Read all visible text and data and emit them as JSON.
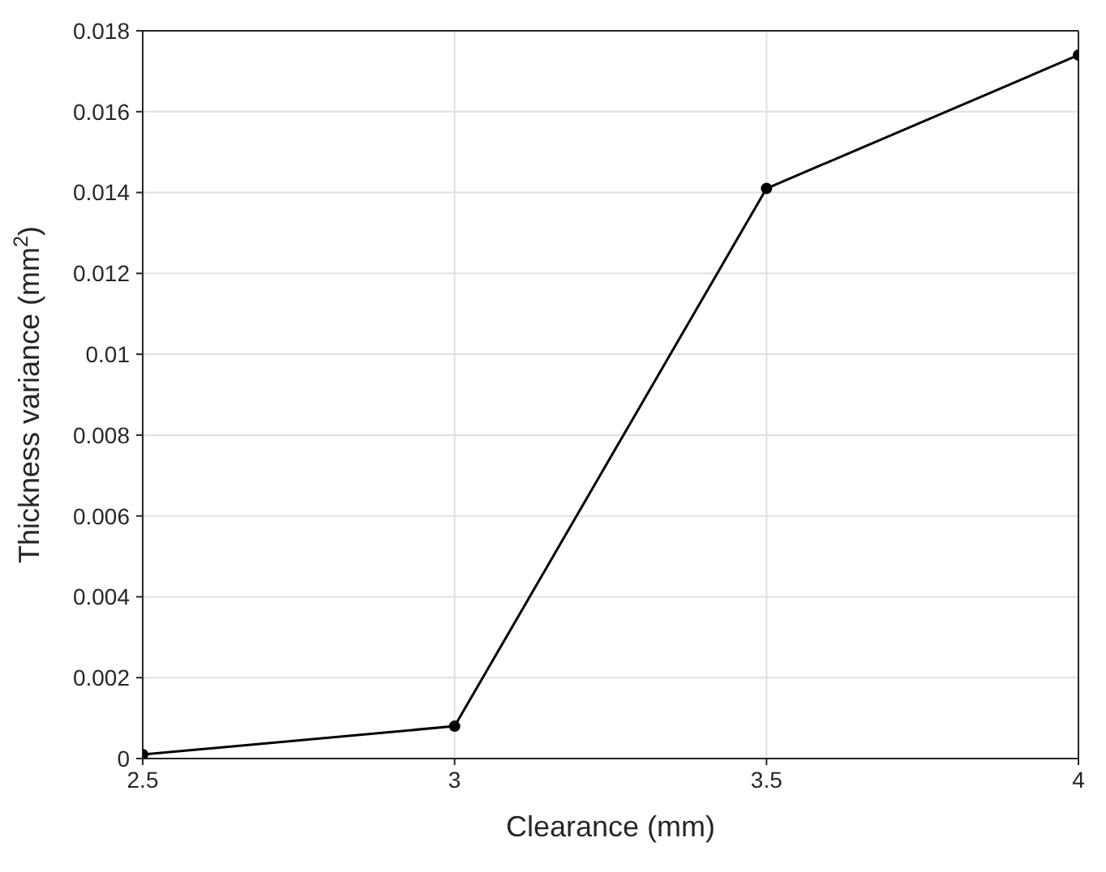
{
  "chart_data": {
    "type": "line",
    "xlabel": "Clearance (mm)",
    "ylabel": "Thickness variance (mm$^{2}$)",
    "x": [
      2.5,
      3,
      3.5,
      4
    ],
    "series": [
      {
        "color": "#000000",
        "values": [
          0.0001,
          0.0008,
          0.0141,
          0.0174
        ]
      }
    ],
    "xlim": [
      2.5,
      4
    ],
    "xticks": [
      2.5,
      3,
      3.5,
      4
    ],
    "ylim": [
      0,
      0.018
    ],
    "yticks": [
      0,
      0.002,
      0.004,
      0.006,
      0.008,
      0.01,
      0.012,
      0.014,
      0.016,
      0.018
    ],
    "grid": true,
    "marker": "circle",
    "line_style": "solid"
  }
}
